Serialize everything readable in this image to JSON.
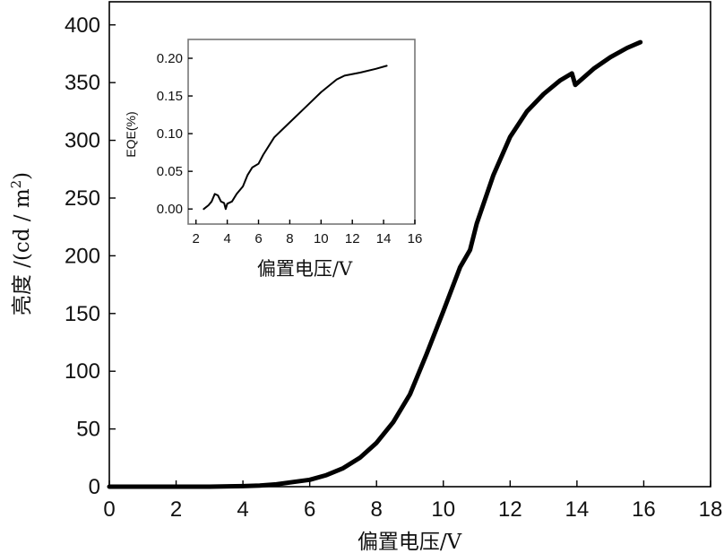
{
  "chart_data": [
    {
      "type": "line",
      "xlabel": "偏置电压/V",
      "ylabel": "亮度 /(cd / m",
      "ylabel_sup": "2",
      "ylabel_close": ")",
      "xlim": [
        0,
        18
      ],
      "ylim": [
        0,
        420
      ],
      "xticks": [
        "0",
        "2",
        "4",
        "6",
        "8",
        "10",
        "12",
        "14",
        "16",
        "18"
      ],
      "yticks": [
        "0",
        "50",
        "100",
        "150",
        "200",
        "250",
        "300",
        "350",
        "400"
      ],
      "grid": false,
      "series": [
        {
          "x": [
            0,
            1,
            2,
            3,
            4,
            4.5,
            5,
            5.5,
            6,
            6.5,
            7,
            7.5,
            8,
            8.5,
            9,
            9.5,
            10,
            10.5,
            10.8,
            11,
            11.5,
            12,
            12.5,
            13,
            13.5,
            13.85,
            13.95,
            14.5,
            15,
            15.5,
            15.9
          ],
          "y": [
            0,
            0,
            0,
            0,
            0.5,
            1,
            2,
            4,
            6,
            10,
            16,
            25,
            38,
            56,
            80,
            115,
            152,
            190,
            205,
            228,
            270,
            303,
            325,
            340,
            352,
            358,
            348,
            362,
            372,
            380,
            385
          ]
        }
      ]
    },
    {
      "type": "line",
      "xlabel": "偏置电压/V",
      "ylabel": "EQE(%)",
      "xlim": [
        1.5,
        16
      ],
      "ylim": [
        -0.02,
        0.225
      ],
      "xticks": [
        "2",
        "4",
        "6",
        "8",
        "10",
        "12",
        "14",
        "16"
      ],
      "yticks": [
        "0.00",
        "0.05",
        "0.10",
        "0.15",
        "0.20"
      ],
      "grid": false,
      "series": [
        {
          "x": [
            2.5,
            2.8,
            3.0,
            3.2,
            3.4,
            3.6,
            3.8,
            3.9,
            4.0,
            4.3,
            4.6,
            5.0,
            5.3,
            5.6,
            6.0,
            6.3,
            6.7,
            7.0,
            7.5,
            8.0,
            9.0,
            10.0,
            11.0,
            11.5,
            12.5,
            13.5,
            14.2
          ],
          "y": [
            0.0,
            0.005,
            0.01,
            0.02,
            0.018,
            0.01,
            0.008,
            0.0,
            0.007,
            0.01,
            0.02,
            0.03,
            0.045,
            0.055,
            0.06,
            0.072,
            0.085,
            0.095,
            0.105,
            0.115,
            0.135,
            0.155,
            0.172,
            0.177,
            0.181,
            0.186,
            0.19
          ]
        }
      ]
    }
  ]
}
